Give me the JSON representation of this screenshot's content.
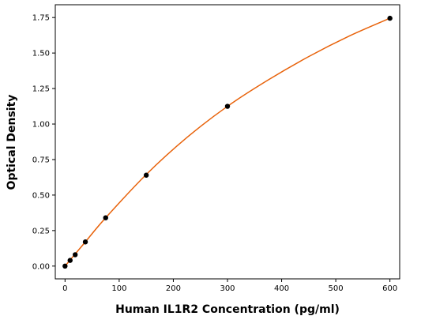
{
  "chart_data": {
    "type": "scatter",
    "title": "",
    "xlabel": "Human IL1R2 Concentration (pg/ml)",
    "ylabel": "Optical Density",
    "xlim": [
      -18,
      618
    ],
    "ylim": [
      -0.09,
      1.84
    ],
    "xticks": [
      0,
      100,
      200,
      300,
      400,
      500,
      600
    ],
    "xtick_labels": [
      "0",
      "100",
      "200",
      "300",
      "400",
      "500",
      "600"
    ],
    "yticks": [
      0,
      0.25,
      0.5,
      0.75,
      1.0,
      1.25,
      1.5,
      1.75
    ],
    "ytick_labels": [
      "0.00",
      "0.25",
      "0.50",
      "0.75",
      "1.00",
      "1.25",
      "1.50",
      "1.75"
    ],
    "grid": false,
    "legend": "none",
    "series": [
      {
        "kind": "points",
        "color": "#000000",
        "x": [
          0,
          9.375,
          18.75,
          37.5,
          75,
          150,
          300,
          600
        ],
        "y": [
          0.0,
          0.04,
          0.08,
          0.17,
          0.34,
          0.64,
          1.125,
          1.745
        ]
      },
      {
        "kind": "fitted-curve",
        "color": "#e8620a",
        "x": [
          0,
          9.375,
          18.75,
          37.5,
          75,
          150,
          225,
          300,
          375,
          450,
          525,
          600
        ],
        "y": [
          0.0,
          0.043,
          0.085,
          0.17,
          0.34,
          0.645,
          0.905,
          1.125,
          1.31,
          1.475,
          1.62,
          1.745
        ]
      }
    ]
  }
}
